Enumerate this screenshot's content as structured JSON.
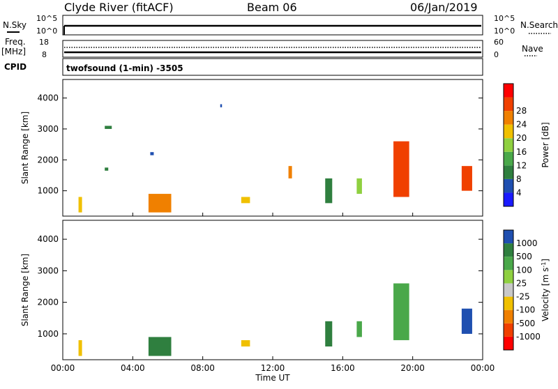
{
  "header": {
    "station": "Clyde River (fitACF)",
    "beam": "Beam 06",
    "date": "06/Jan/2019"
  },
  "status_panels": {
    "nsky_label": "N.Sky",
    "nsearch_label": "N.Search",
    "noise_ticks": [
      "10^5",
      "10^0"
    ],
    "noise_ticks_right": [
      "10^5",
      "10^0"
    ],
    "freq_label": "Freq.",
    "freq_unit": "[MHz]",
    "freq_ticks": [
      "18",
      "8"
    ],
    "nave_label": "Nave",
    "nave_ticks": [
      "60",
      "0"
    ],
    "cpid_label": "CPID",
    "cpid_text": "twofsound (1-min) -3505"
  },
  "colors": {
    "power_scale": [
      "#1a1aff",
      "#1f4fb0",
      "#2f7f3f",
      "#4aa84a",
      "#8fd040",
      "#f0c000",
      "#f08000",
      "#f04000",
      "#ff0000"
    ],
    "velocity_scale": [
      "#ff0000",
      "#f04000",
      "#f08000",
      "#f0c000",
      "#c8c8c8",
      "#8fd040",
      "#4aa84a",
      "#2f7f3f",
      "#1f4fb0"
    ]
  },
  "chart_data": [
    {
      "type": "heatmap",
      "name": "power",
      "ylabel": "Slant Range [km]",
      "xlabel": "Time UT",
      "xlim": [
        0,
        24
      ],
      "ylim": [
        180,
        4600
      ],
      "x_ticks": [
        "00:00",
        "04:00",
        "08:00",
        "12:00",
        "16:00",
        "20:00",
        "00:00"
      ],
      "y_ticks": [
        "1000",
        "2000",
        "3000",
        "4000"
      ],
      "colorbar_label": "Power [dB]",
      "colorbar_ticks": [
        "4",
        "8",
        "12",
        "16",
        "20",
        "24",
        "28"
      ],
      "regions": [
        {
          "x": [
            0.9,
            1.1
          ],
          "y": [
            300,
            800
          ],
          "value": 20
        },
        {
          "x": [
            2.4,
            2.6
          ],
          "y": [
            1650,
            1750
          ],
          "value": 8
        },
        {
          "x": [
            2.4,
            2.8
          ],
          "y": [
            3000,
            3100
          ],
          "value": 8
        },
        {
          "x": [
            4.9,
            6.2
          ],
          "y": [
            300,
            900
          ],
          "value": 24
        },
        {
          "x": [
            5.0,
            5.2
          ],
          "y": [
            2150,
            2250
          ],
          "value": 4
        },
        {
          "x": [
            9.0,
            9.1
          ],
          "y": [
            3700,
            3800
          ],
          "value": 4
        },
        {
          "x": [
            10.2,
            10.7
          ],
          "y": [
            600,
            800
          ],
          "value": 20
        },
        {
          "x": [
            12.9,
            13.1
          ],
          "y": [
            1400,
            1800
          ],
          "value": 24
        },
        {
          "x": [
            15.0,
            15.4
          ],
          "y": [
            600,
            1400
          ],
          "value": 8
        },
        {
          "x": [
            16.8,
            17.1
          ],
          "y": [
            900,
            1400
          ],
          "value": 16
        },
        {
          "x": [
            18.9,
            19.8
          ],
          "y": [
            800,
            2600
          ],
          "value": 28
        },
        {
          "x": [
            22.8,
            23.4
          ],
          "y": [
            1000,
            1800
          ],
          "value": 28
        }
      ]
    },
    {
      "type": "heatmap",
      "name": "velocity",
      "ylabel": "Slant Range [km]",
      "xlabel": "Time UT",
      "xlim": [
        0,
        24
      ],
      "ylim": [
        180,
        4600
      ],
      "x_ticks": [
        "00:00",
        "04:00",
        "08:00",
        "12:00",
        "16:00",
        "20:00",
        "00:00"
      ],
      "y_ticks": [
        "1000",
        "2000",
        "3000",
        "4000"
      ],
      "colorbar_label": "Velocity [m s",
      "colorbar_label_sup": "-1",
      "colorbar_label_end": "]",
      "colorbar_ticks": [
        "1000",
        "500",
        "100",
        "25",
        "-25",
        "-100",
        "-500",
        "-1000"
      ],
      "regions": [
        {
          "x": [
            0.9,
            1.1
          ],
          "y": [
            300,
            800
          ],
          "value": -100
        },
        {
          "x": [
            4.9,
            6.2
          ],
          "y": [
            300,
            900
          ],
          "value": 500
        },
        {
          "x": [
            10.2,
            10.7
          ],
          "y": [
            600,
            800
          ],
          "value": -100
        },
        {
          "x": [
            15.0,
            15.4
          ],
          "y": [
            600,
            1400
          ],
          "value": 500
        },
        {
          "x": [
            16.8,
            17.1
          ],
          "y": [
            900,
            1400
          ],
          "value": 100
        },
        {
          "x": [
            18.9,
            19.8
          ],
          "y": [
            800,
            2600
          ],
          "value": 100
        },
        {
          "x": [
            22.8,
            23.4
          ],
          "y": [
            1000,
            1800
          ],
          "value": 1000
        }
      ]
    }
  ]
}
